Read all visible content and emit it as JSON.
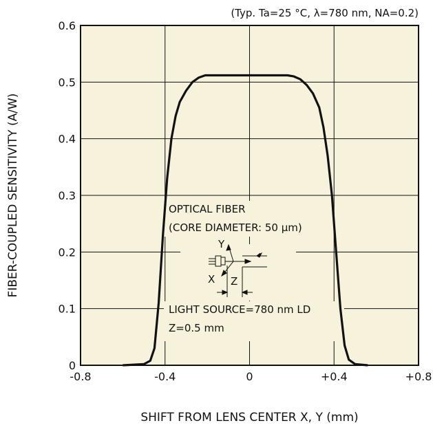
{
  "chart_data": {
    "type": "line",
    "title": "(Typ. Ta=25 °C, λ=780 nm,  NA=0.2)",
    "xlabel": "SHIFT FROM LENS CENTER  X, Y (mm)",
    "ylabel": "FIBER-COUPLED SENSITIVITY (A/W)",
    "xlim": [
      -0.8,
      0.8
    ],
    "ylim": [
      0,
      0.6
    ],
    "xticks": [
      "-0.8",
      "-0.4",
      "0",
      "+0.4",
      "+0.8"
    ],
    "yticks": [
      "0",
      "0.1",
      "0.2",
      "0.3",
      "0.4",
      "0.5",
      "0.6"
    ],
    "grid": true,
    "plot_background": "#f7f2dc",
    "series": [
      {
        "x": [
          -0.6,
          -0.5,
          -0.47,
          -0.45,
          -0.43,
          -0.41,
          -0.39,
          -0.37,
          -0.35,
          -0.33,
          -0.3,
          -0.27,
          -0.24,
          -0.21,
          -0.18,
          0,
          0.18,
          0.21,
          0.24,
          0.27,
          0.3,
          0.33,
          0.35,
          0.37,
          0.39,
          0.41,
          0.43,
          0.45,
          0.47,
          0.5,
          0.56
        ],
        "y": [
          0,
          0.002,
          0.008,
          0.03,
          0.11,
          0.23,
          0.33,
          0.4,
          0.44,
          0.465,
          0.485,
          0.5,
          0.508,
          0.512,
          0.512,
          0.512,
          0.512,
          0.51,
          0.505,
          0.495,
          0.48,
          0.455,
          0.42,
          0.37,
          0.3,
          0.2,
          0.1,
          0.035,
          0.01,
          0.002,
          0
        ],
        "color": "#111111"
      }
    ],
    "annotations": [
      {
        "text": "OPTICAL FIBER",
        "x": -0.06,
        "y": 0.305
      },
      {
        "text": "(CORE DIAMETER: 50 μm)",
        "x": -0.06,
        "y": 0.265
      },
      {
        "text": "LIGHT SOURCE=780 nm LD",
        "x": -0.06,
        "y": 0.11
      },
      {
        "text": "Z=0.5 mm",
        "x": -0.06,
        "y": 0.07
      }
    ],
    "inset_labels": {
      "y_axis": "Y",
      "x_axis": "X",
      "z_axis": "Z"
    }
  }
}
